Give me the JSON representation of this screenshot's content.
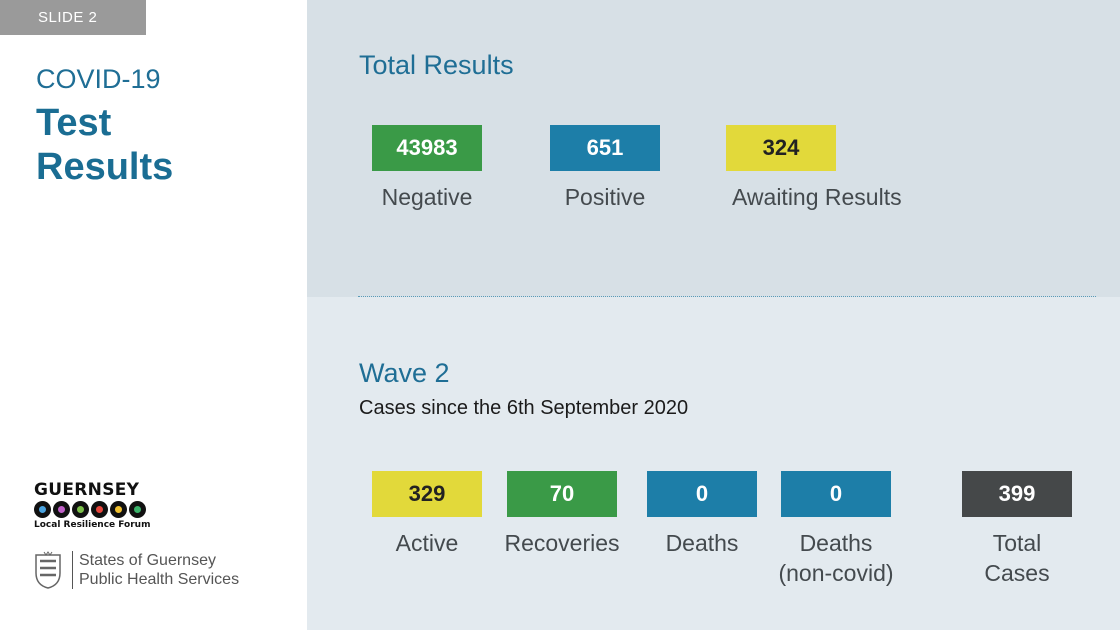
{
  "slide_tag": "SLIDE 2",
  "title": {
    "sub": "COVID-19",
    "main_line1": "Test",
    "main_line2": "Results"
  },
  "total_results": {
    "heading": "Total Results",
    "stats": [
      {
        "value": "43983",
        "label": "Negative",
        "color": "#3a9a47"
      },
      {
        "value": "651",
        "label": "Positive",
        "color": "#1d7ea8"
      },
      {
        "value": "324",
        "label": "Awaiting Results",
        "color": "#e2d93a"
      }
    ]
  },
  "wave2": {
    "heading": "Wave 2",
    "subheading": "Cases since the 6th September 2020",
    "stats": [
      {
        "value": "329",
        "label": "Active",
        "color": "#e2d93a"
      },
      {
        "value": "70",
        "label": "Recoveries",
        "color": "#3a9a47"
      },
      {
        "value": "0",
        "label": "Deaths",
        "color": "#1d7ea8"
      },
      {
        "value": "0",
        "label_line1": "Deaths",
        "label_line2": "(non-covid)",
        "color": "#1d7ea8"
      },
      {
        "value": "399",
        "label_line1": "Total",
        "label_line2": "Cases",
        "color": "#454849"
      }
    ]
  },
  "logos": {
    "guernsey_word": "GUERNSEY",
    "forum": "Local Resilience Forum",
    "states_line1": "States of Guernsey",
    "states_line2": "Public Health Services"
  }
}
